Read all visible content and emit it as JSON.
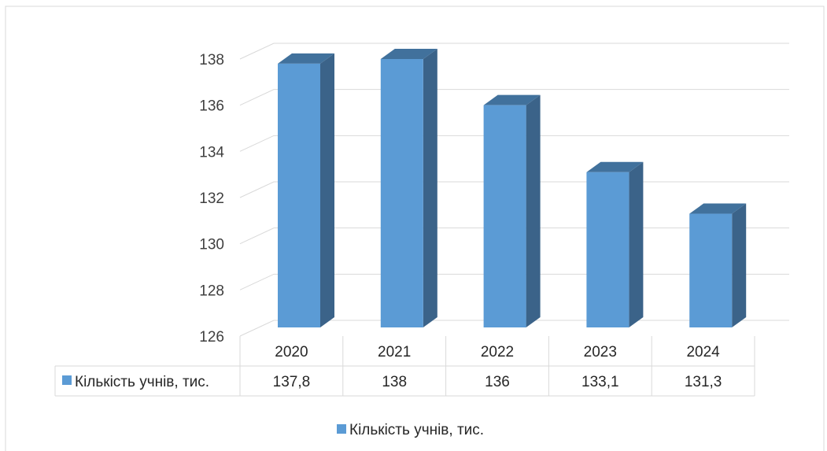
{
  "chart_data": {
    "type": "bar",
    "categories": [
      "2020",
      "2021",
      "2022",
      "2023",
      "2024"
    ],
    "series": [
      {
        "name": "Кількість учнів, тис.",
        "values": [
          137.8,
          138,
          136,
          133.1,
          131.3
        ],
        "value_labels": [
          "137,8",
          "138",
          "136",
          "133,1",
          "131,3"
        ],
        "color": "#5b9bd5",
        "side_color": "#3b6389",
        "top_color": "#41719c"
      }
    ],
    "ylim": [
      126,
      138
    ],
    "yticks": [
      126,
      128,
      130,
      132,
      134,
      136,
      138
    ],
    "grid": true,
    "data_table": true,
    "legend_position": "bottom",
    "three_d": true
  }
}
